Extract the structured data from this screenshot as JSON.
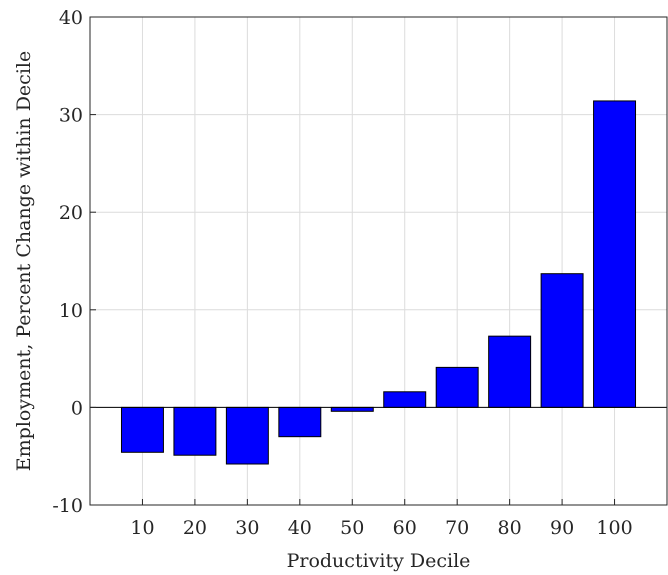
{
  "chart_data": {
    "type": "bar",
    "categories": [
      "10",
      "20",
      "30",
      "40",
      "50",
      "60",
      "70",
      "80",
      "90",
      "100"
    ],
    "values": [
      -4.6,
      -4.9,
      -5.8,
      -3.0,
      -0.4,
      1.6,
      4.1,
      7.3,
      13.7,
      31.4
    ],
    "xlabel": "Productivity Decile",
    "ylabel": "Employment, Percent Change within Decile",
    "ylim": [
      -10,
      40
    ],
    "yticks": [
      -10,
      0,
      10,
      20,
      30,
      40
    ],
    "grid": true,
    "bar_color": "#0000ff",
    "bar_edge_color": "#000000"
  }
}
